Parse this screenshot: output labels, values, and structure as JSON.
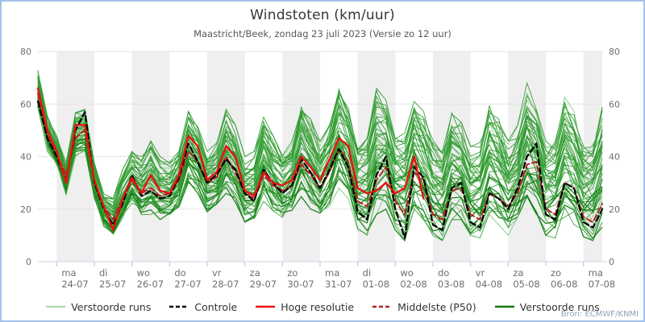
{
  "title": "Windstoten (km/uur)",
  "subtitle": "Maastricht/Beek, zondag 23 juli 2023 (Versie zo 12 uur)",
  "source": "Bron: ECMWF/KNMI",
  "colors": {
    "frame_border": "#a3c1e8",
    "day_band": "#efefef",
    "grid": "#e3e3e3",
    "axis_line": "#c9d4e2",
    "tick_line": "#b9c4d4",
    "tick_text": "#6e6e6e",
    "ensemble": "#2f9b2f",
    "ensemble_light": "#7cc47c",
    "ensemble_dark": "#158015",
    "control": "#000000",
    "hres": "#e81212",
    "p50": "#b22222"
  },
  "legend": [
    {
      "label": "Verstoorde runs",
      "color": "#a8d4a8",
      "dash": "",
      "width": 2
    },
    {
      "label": "Controle",
      "color": "#000000",
      "dash": "5 3",
      "width": 2.4
    },
    {
      "label": "Hoge resolutie",
      "color": "#e81212",
      "dash": "",
      "width": 2.6
    },
    {
      "label": "Middelste (P50)",
      "color": "#b22222",
      "dash": "5 3",
      "width": 2.4
    },
    {
      "label": "Verstoorde runs",
      "color": "#107a10",
      "dash": "",
      "width": 2.6
    }
  ],
  "chart_data": {
    "type": "line",
    "title": "Windstoten (km/uur)",
    "subtitle": "Maastricht/Beek, zondag 23 juli 2023 (Versie zo 12 uur)",
    "unit": "km/uur",
    "ylim": [
      0,
      80
    ],
    "yticks": [
      0,
      20,
      40,
      60,
      80
    ],
    "x_start": "2023-07-23 12:00",
    "x_end": "2023-08-07 12:00",
    "step_hours": 6,
    "grid": true,
    "legend_position": "bottom",
    "x_ticks": [
      {
        "weekday": "ma",
        "date": "24-07"
      },
      {
        "weekday": "di",
        "date": "25-07"
      },
      {
        "weekday": "wo",
        "date": "26-07"
      },
      {
        "weekday": "do",
        "date": "27-07"
      },
      {
        "weekday": "vr",
        "date": "28-07"
      },
      {
        "weekday": "za",
        "date": "29-07"
      },
      {
        "weekday": "zo",
        "date": "30-07"
      },
      {
        "weekday": "ma",
        "date": "31-07"
      },
      {
        "weekday": "di",
        "date": "01-08"
      },
      {
        "weekday": "wo",
        "date": "02-08"
      },
      {
        "weekday": "do",
        "date": "03-08"
      },
      {
        "weekday": "vr",
        "date": "04-08"
      },
      {
        "weekday": "za",
        "date": "05-08"
      },
      {
        "weekday": "zo",
        "date": "06-08"
      },
      {
        "weekday": "ma",
        "date": "07-08"
      }
    ],
    "series": [
      {
        "name": "Controle",
        "style": "dashed-black",
        "values": [
          61,
          47,
          40,
          31,
          50,
          57,
          30,
          20,
          14,
          22,
          33,
          25,
          27,
          24,
          25,
          32,
          45,
          38,
          30,
          33,
          39,
          35,
          26,
          23,
          35,
          30,
          26,
          29,
          39,
          34,
          28,
          35,
          43,
          36,
          19,
          16,
          33,
          40,
          20,
          9,
          36,
          32,
          14,
          12,
          28,
          30,
          15,
          13,
          26,
          24,
          20,
          28,
          40,
          45,
          18,
          16,
          30,
          28,
          15,
          13,
          20
        ]
      },
      {
        "name": "Hoge resolutie",
        "style": "solid-red",
        "values": [
          66,
          50,
          42,
          30,
          52,
          52,
          31,
          21,
          12,
          24,
          32,
          26,
          33,
          27,
          26,
          33,
          48,
          44,
          31,
          34,
          44,
          40,
          27,
          25,
          34,
          30,
          29,
          31,
          40,
          36,
          31,
          39,
          47,
          44,
          28,
          26,
          27,
          30,
          26,
          28,
          40,
          24
        ]
      },
      {
        "name": "Middelste (P50)",
        "style": "dashed-darkred",
        "values": [
          64,
          48,
          41,
          33,
          47,
          50,
          30,
          21,
          16,
          24,
          31,
          26,
          28,
          25,
          26,
          31,
          42,
          38,
          30,
          32,
          40,
          34,
          26,
          24,
          33,
          29,
          27,
          29,
          37,
          33,
          28,
          34,
          43,
          38,
          23,
          21,
          31,
          36,
          23,
          18,
          34,
          31,
          18,
          16,
          27,
          28,
          18,
          16,
          26,
          24,
          21,
          26,
          37,
          38,
          20,
          18,
          30,
          28,
          17,
          15,
          22
        ]
      }
    ],
    "ensemble": {
      "name": "Verstoorde runs",
      "count": 50,
      "min": [
        58,
        42,
        36,
        25,
        40,
        42,
        24,
        13,
        9,
        16,
        22,
        17,
        18,
        16,
        17,
        20,
        30,
        26,
        19,
        20,
        26,
        22,
        15,
        14,
        22,
        18,
        16,
        18,
        24,
        20,
        16,
        20,
        28,
        24,
        12,
        10,
        18,
        20,
        12,
        8,
        20,
        16,
        10,
        8,
        16,
        16,
        10,
        9,
        16,
        14,
        10,
        14,
        20,
        18,
        10,
        9,
        16,
        14,
        9,
        8,
        13
      ],
      "max": [
        74,
        56,
        48,
        38,
        58,
        58,
        38,
        26,
        24,
        35,
        42,
        40,
        46,
        40,
        38,
        44,
        58,
        52,
        42,
        46,
        58,
        52,
        40,
        42,
        55,
        48,
        42,
        46,
        62,
        55,
        46,
        55,
        68,
        60,
        46,
        50,
        66,
        62,
        50,
        52,
        64,
        58,
        48,
        46,
        60,
        56,
        44,
        46,
        62,
        56,
        46,
        52,
        68,
        60,
        48,
        50,
        64,
        58,
        46,
        48,
        62
      ]
    }
  }
}
